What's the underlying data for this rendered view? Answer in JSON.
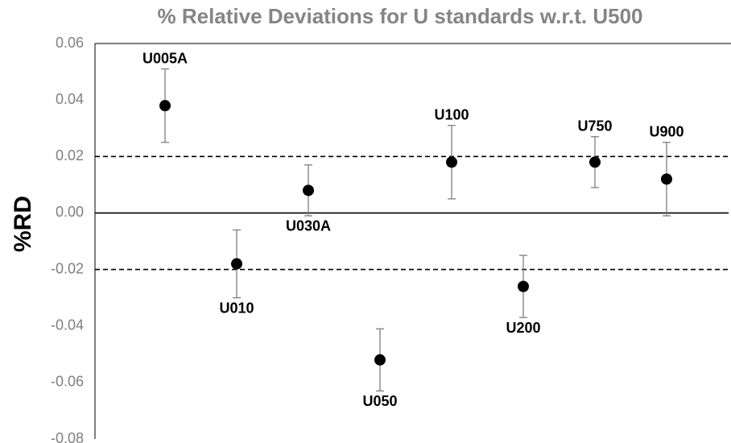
{
  "chart_data": {
    "type": "errorbar",
    "title": "% Relative Deviations for U standards w.r.t. U500",
    "ylabel": "%RD",
    "categories": [
      "U005A",
      "U010",
      "U030A",
      "U050",
      "U100",
      "U200",
      "U750",
      "U900"
    ],
    "values": [
      0.038,
      -0.018,
      0.008,
      -0.052,
      0.018,
      -0.026,
      0.018,
      0.012
    ],
    "errors": [
      0.013,
      0.012,
      0.009,
      0.011,
      0.013,
      0.011,
      0.009,
      0.013
    ],
    "label_side": [
      "above",
      "below",
      "below",
      "below",
      "above",
      "below",
      "above",
      "above"
    ],
    "color": "#000000",
    "ylim": [
      -0.08,
      0.06
    ],
    "yticks": [
      -0.08,
      -0.06,
      -0.04,
      -0.02,
      {
        "value": 0,
        "label": "0.00"
      },
      0.02,
      0.04,
      0.06
    ],
    "hlines": [
      {
        "value": 0.02,
        "style": "dashed"
      },
      {
        "value": 0,
        "style": "solid"
      },
      {
        "value": -0.02,
        "style": "dashed"
      }
    ]
  }
}
